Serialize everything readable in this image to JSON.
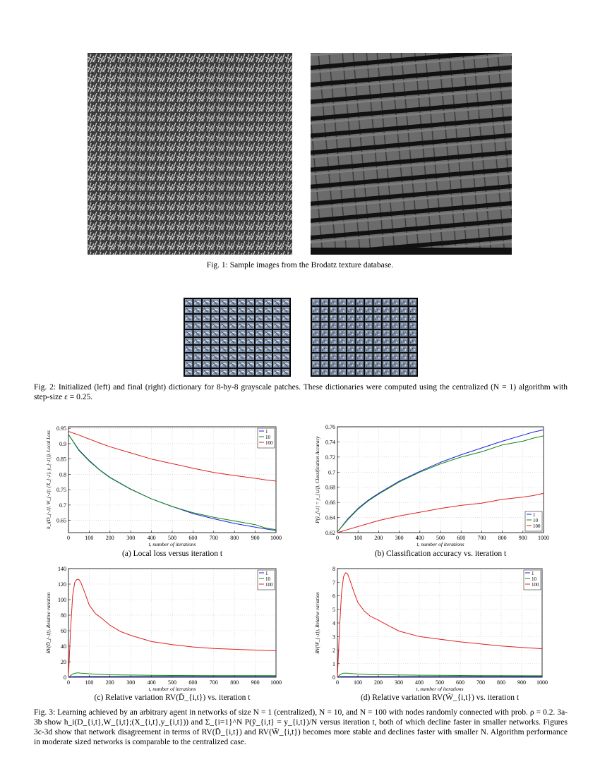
{
  "fig1": {
    "caption": "Fig. 1: Sample images from the Brodatz texture database."
  },
  "fig2": {
    "caption": "Fig. 2: Initialized (left) and final (right) dictionary for 8-by-8 grayscale patches. These dictionaries were computed using the centralized (N = 1) algorithm with step-size ε = 0.25."
  },
  "fig3": {
    "caption": "Fig. 3: Learning achieved by an arbitrary agent in networks of size N = 1 (centralized), N = 10, and N = 100 with nodes randomly connected with prob. ρ = 0.2. 3a-3b show h_i(D_{i,t},W_{i,t};(X_{i,t},y_{i,t})) and Σ_{i=1}^N P(ŷ_{i,t} = y_{i,t})/N versus iteration t, both of which decline faster in smaller networks. Figures 3c-3d show that network disagreement in terms of RV(D̄_{i,t}) and RV(W̄_{i,t}) becomes more stable and declines faster with smaller N. Algorithm performance in moderate sized networks is comparable to the centralized case."
  },
  "chart_data": [
    {
      "id": "a",
      "type": "line",
      "caption": "(a) Local loss versus iteration t",
      "xlabel": "t, number of iterations",
      "ylabel": "h_i(D_{·,t}, W_{·,t}; (X_{·,t}, y_{·,t})), Local Loss",
      "xlim": [
        0,
        1000
      ],
      "ylim": [
        0.61,
        0.955
      ],
      "xticks": [
        0,
        100,
        200,
        300,
        400,
        500,
        600,
        700,
        800,
        900,
        1000
      ],
      "yticks": [
        0.65,
        0.7,
        0.75,
        0.8,
        0.85,
        0.9,
        0.95
      ],
      "grid": true,
      "legend_position": "top-right",
      "x": [
        0,
        50,
        100,
        150,
        200,
        300,
        400,
        500,
        600,
        700,
        800,
        900,
        950,
        1000
      ],
      "series": [
        {
          "name": "1",
          "color": "#1f1fe0",
          "values": [
            0.93,
            0.88,
            0.845,
            0.815,
            0.79,
            0.752,
            0.72,
            0.695,
            0.672,
            0.655,
            0.64,
            0.628,
            0.622,
            0.617
          ]
        },
        {
          "name": "10",
          "color": "#108a10",
          "values": [
            0.93,
            0.878,
            0.843,
            0.814,
            0.789,
            0.751,
            0.72,
            0.695,
            0.675,
            0.66,
            0.648,
            0.636,
            0.625,
            0.62
          ]
        },
        {
          "name": "100",
          "color": "#e02020",
          "values": [
            0.94,
            0.928,
            0.915,
            0.902,
            0.89,
            0.87,
            0.85,
            0.835,
            0.82,
            0.806,
            0.796,
            0.787,
            0.782,
            0.778
          ]
        }
      ]
    },
    {
      "id": "b",
      "type": "line",
      "caption": "(b) Classification accuracy vs. iteration t",
      "xlabel": "t, number of iterations",
      "ylabel": "P(ŷ_{i,t} = y_{i,t}), Classification Accuracy",
      "xlim": [
        0,
        1000
      ],
      "ylim": [
        0.62,
        0.76
      ],
      "xticks": [
        0,
        100,
        200,
        300,
        400,
        500,
        600,
        700,
        800,
        900,
        1000
      ],
      "yticks": [
        0.62,
        0.64,
        0.66,
        0.68,
        0.7,
        0.72,
        0.74,
        0.76
      ],
      "grid": true,
      "legend_position": "bottom-right",
      "x": [
        0,
        50,
        100,
        150,
        200,
        300,
        400,
        500,
        600,
        700,
        800,
        900,
        950,
        1000
      ],
      "series": [
        {
          "name": "1",
          "color": "#1f1fe0",
          "values": [
            0.621,
            0.638,
            0.652,
            0.663,
            0.672,
            0.688,
            0.701,
            0.713,
            0.723,
            0.732,
            0.741,
            0.749,
            0.753,
            0.756
          ]
        },
        {
          "name": "10",
          "color": "#108a10",
          "values": [
            0.621,
            0.637,
            0.651,
            0.662,
            0.671,
            0.687,
            0.7,
            0.711,
            0.72,
            0.727,
            0.736,
            0.741,
            0.745,
            0.748
          ]
        },
        {
          "name": "100",
          "color": "#e02020",
          "values": [
            0.62,
            0.624,
            0.628,
            0.632,
            0.636,
            0.642,
            0.647,
            0.652,
            0.656,
            0.659,
            0.664,
            0.667,
            0.669,
            0.672
          ]
        }
      ]
    },
    {
      "id": "c",
      "type": "line",
      "caption": "(c) Relative variation RV(D̄_{i,t}) vs. iteration t",
      "xlabel": "t, number of iterations",
      "ylabel": "RV(D̄_{·,t}), Relative variation",
      "xlim": [
        0,
        1000
      ],
      "ylim": [
        0,
        140
      ],
      "xticks": [
        0,
        100,
        200,
        300,
        400,
        500,
        600,
        700,
        800,
        900,
        1000
      ],
      "yticks": [
        0,
        20,
        40,
        60,
        80,
        100,
        120,
        140
      ],
      "grid": true,
      "legend_position": "top-right",
      "x": [
        0,
        10,
        20,
        30,
        40,
        50,
        60,
        80,
        100,
        130,
        160,
        200,
        250,
        300,
        400,
        500,
        600,
        700,
        800,
        900,
        1000
      ],
      "series": [
        {
          "name": "1",
          "color": "#1f1fe0",
          "values": [
            0,
            0.5,
            0.8,
            1,
            1,
            1,
            1,
            1,
            1,
            1,
            1,
            1,
            1,
            1,
            1,
            1,
            1,
            1,
            1,
            1,
            1
          ]
        },
        {
          "name": "10",
          "color": "#108a10",
          "values": [
            0,
            2,
            4,
            5,
            5.5,
            5.5,
            5.3,
            5,
            4.5,
            4,
            3.6,
            3.2,
            3,
            2.8,
            2.5,
            2.3,
            2.2,
            2.1,
            2,
            2,
            2
          ]
        },
        {
          "name": "100",
          "color": "#e02020",
          "values": [
            0,
            60,
            105,
            122,
            126,
            126,
            122,
            108,
            93,
            82,
            76,
            67,
            59,
            54,
            46,
            42,
            39,
            37,
            36,
            35,
            34
          ]
        }
      ]
    },
    {
      "id": "d",
      "type": "line",
      "caption": "(d) Relative variation RV(W̄_{i,t}) vs. iteration t",
      "xlabel": "t, number of iterations",
      "ylabel": "RV(W̄_{·,t}), Relative variation",
      "xlim": [
        0,
        1000
      ],
      "ylim": [
        0,
        8
      ],
      "xticks": [
        0,
        100,
        200,
        300,
        400,
        500,
        600,
        700,
        800,
        900,
        1000
      ],
      "yticks": [
        0,
        1,
        2,
        3,
        4,
        5,
        6,
        7,
        8
      ],
      "grid": true,
      "legend_position": "top-right",
      "x": [
        0,
        10,
        20,
        30,
        40,
        50,
        60,
        80,
        100,
        130,
        160,
        200,
        250,
        300,
        400,
        500,
        600,
        700,
        800,
        900,
        1000
      ],
      "series": [
        {
          "name": "1",
          "color": "#1f1fe0",
          "values": [
            0,
            0.03,
            0.05,
            0.05,
            0.05,
            0.05,
            0.05,
            0.05,
            0.05,
            0.05,
            0.05,
            0.05,
            0.05,
            0.05,
            0.05,
            0.05,
            0.05,
            0.05,
            0.05,
            0.05,
            0.05
          ]
        },
        {
          "name": "10",
          "color": "#108a10",
          "values": [
            0,
            0.15,
            0.25,
            0.3,
            0.3,
            0.3,
            0.28,
            0.26,
            0.24,
            0.22,
            0.2,
            0.19,
            0.18,
            0.17,
            0.15,
            0.14,
            0.13,
            0.12,
            0.12,
            0.11,
            0.11
          ]
        },
        {
          "name": "100",
          "color": "#e02020",
          "values": [
            0,
            3.5,
            6.2,
            7.4,
            7.7,
            7.6,
            7.2,
            6.3,
            5.5,
            4.9,
            4.5,
            4.2,
            3.8,
            3.4,
            3.0,
            2.8,
            2.6,
            2.45,
            2.3,
            2.2,
            2.1
          ]
        }
      ]
    }
  ]
}
